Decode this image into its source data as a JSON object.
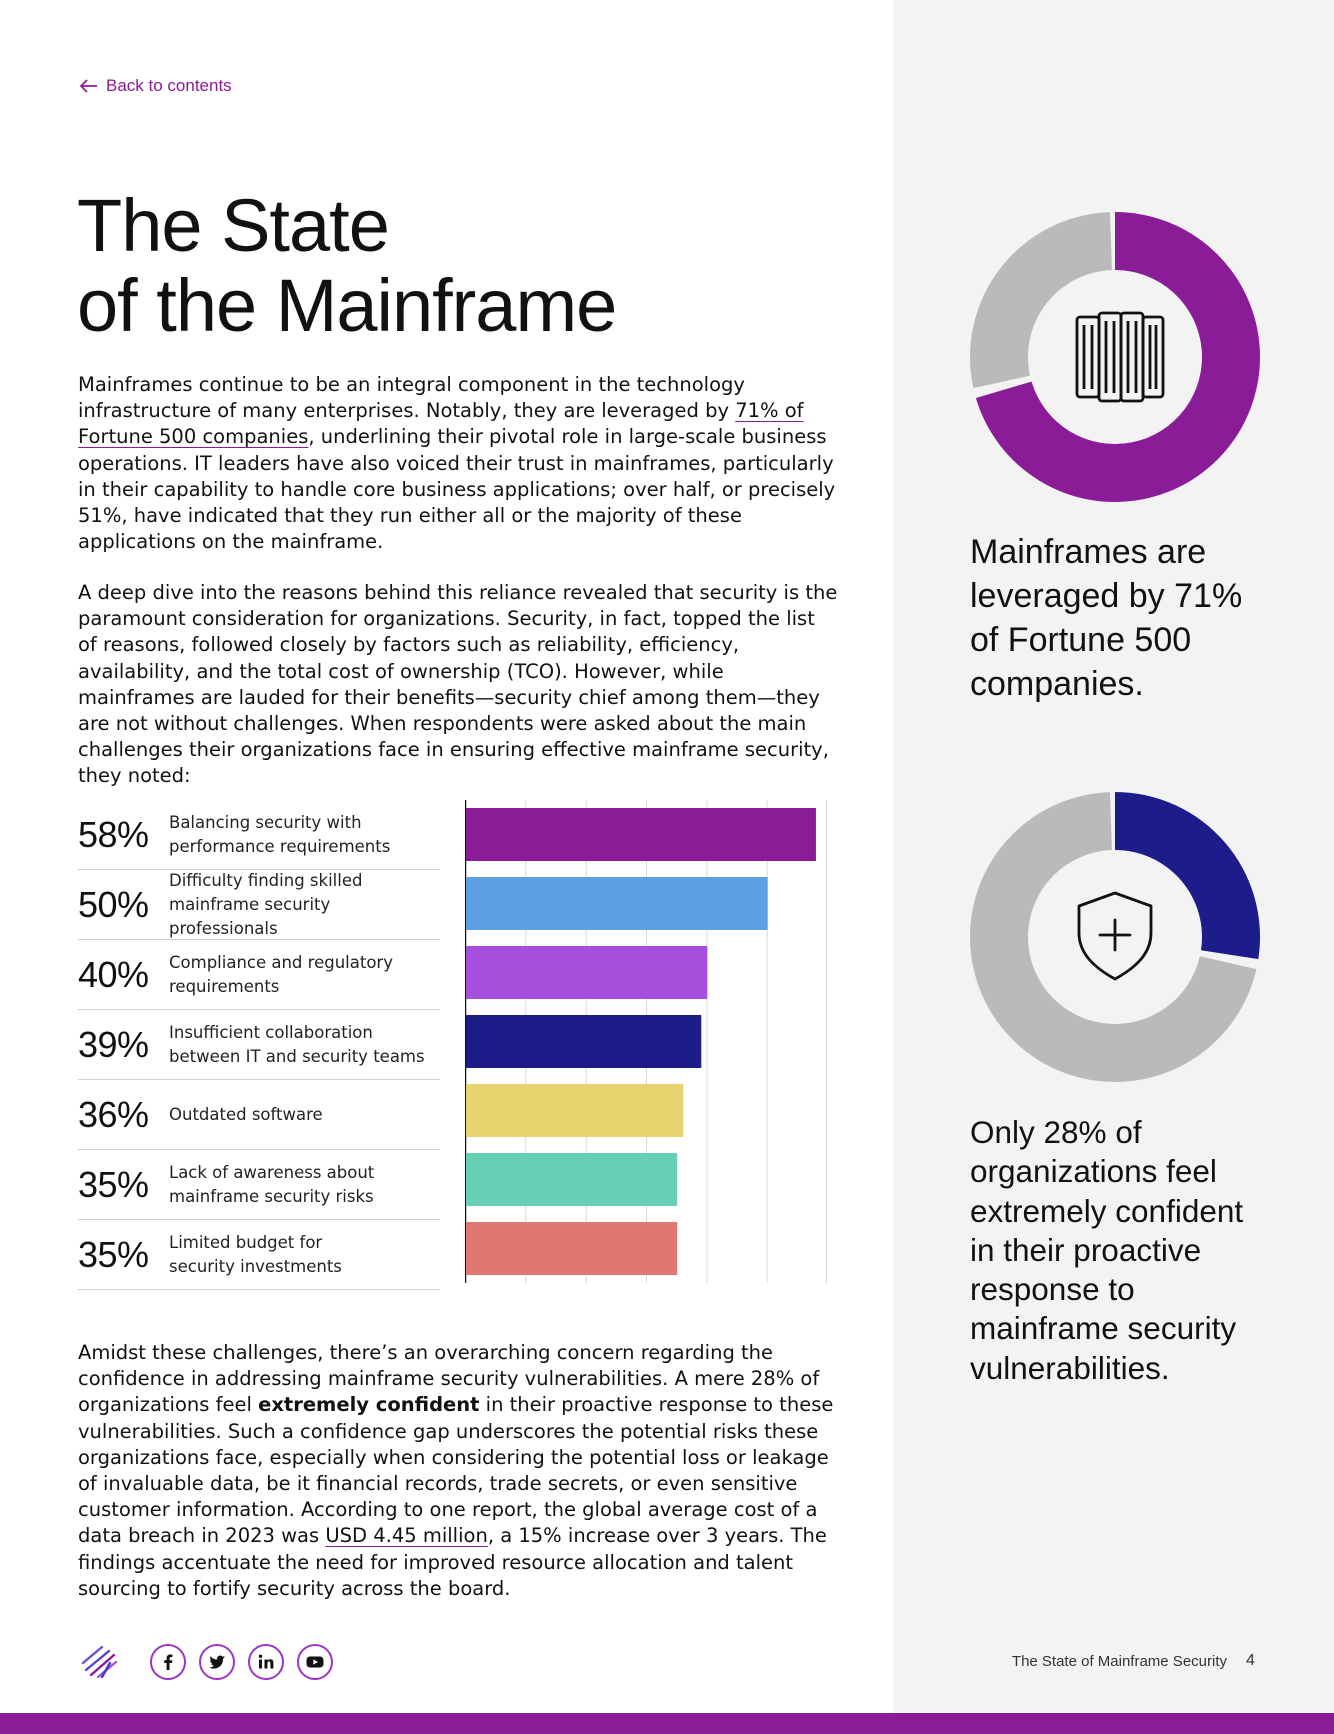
{
  "nav": {
    "back_label": "Back to contents"
  },
  "title": {
    "line1": "The State",
    "line2": "of the Mainframe"
  },
  "intro": {
    "before_link": "Mainframes continue to be an integral component in the technology infrastructure of many enterprises. Notably, they are leveraged by ",
    "link": "71% of Fortune 500 companies",
    "after_link": ", underlining their pivotal role in large-scale business operations. IT leaders have also voiced their trust in mainframes, particularly in their capability to handle core business applications; over half, or precisely 51%, have indicated that they run either all or the majority of these applications on the mainframe."
  },
  "reasons_paragraph": "A deep dive into the reasons behind this reliance revealed that security is the paramount consideration for organizations. Security, in fact, topped the list of reasons, followed closely by factors such as reliability, efficiency, availability, and the total cost of ownership (TCO). However, while mainframes are lauded for their benefits—security chief among them—they are not without challenges. When respondents were asked about the main challenges their organizations face in ensuring effective mainframe security, they noted:",
  "chart_data": {
    "type": "bar",
    "orientation": "horizontal",
    "categories": [
      [
        "Balancing security with",
        "performance requirements"
      ],
      [
        "Difficulty finding skilled",
        "mainframe security professionals"
      ],
      [
        "Compliance and regulatory",
        "requirements"
      ],
      [
        "Insufficient collaboration",
        "between IT and security teams"
      ],
      [
        "Outdated software"
      ],
      [
        "Lack of awareness about",
        "mainframe security risks"
      ],
      [
        "Limited budget for",
        "security investments"
      ]
    ],
    "labels": [
      "58%",
      "50%",
      "40%",
      "39%",
      "36%",
      "35%",
      "35%"
    ],
    "values": [
      58,
      50,
      40,
      39,
      36,
      35,
      35
    ],
    "colors": [
      "#8b1c97",
      "#5ca0e3",
      "#a64fdc",
      "#1c1c8a",
      "#e9d36e",
      "#66cfb6",
      "#e07770"
    ],
    "xlim": [
      0,
      60
    ],
    "grid": true,
    "title": "",
    "xlabel": "",
    "ylabel": ""
  },
  "conclusion": {
    "before_bold": "Amidst these challenges, there’s an overarching concern regarding the confidence in addressing mainframe security vulnerabilities. A mere 28% of organizations feel ",
    "bold": "extremely confident",
    "middle": " in their proactive response to these vulnerabilities. Such a confidence gap underscores the potential risks these organizations face, especially when considering the potential loss or leakage of invaluable data, be it financial records, trade secrets, or even sensitive customer information. According to one report, the global average cost of a data breach in 2023 was ",
    "link": "USD 4.45 million",
    "after_link": ", a 15% increase over 3 years. The findings accentuate the need for improved resource allocation and talent sourcing to fortify security across the board."
  },
  "stats": [
    {
      "percent": 71,
      "color": "#8b1c97",
      "rest_color": "#bababa",
      "icon": "mainframe-server-icon",
      "lines": [
        "Mainframes are",
        "leveraged by 71%",
        "of Fortune 500",
        "companies."
      ]
    },
    {
      "percent": 28,
      "color": "#1c1c8a",
      "rest_color": "#bababa",
      "icon": "shield-plus-icon",
      "lines": [
        "Only 28% of",
        "organizations feel",
        "extremely confident",
        "in their proactive",
        "response to",
        "mainframe security",
        "vulnerabilities."
      ]
    }
  ],
  "footer": {
    "social": [
      "facebook-icon",
      "twitter-icon",
      "linkedin-icon",
      "youtube-icon"
    ],
    "doc_title": "The State of Mainframe Security",
    "page_number": "4"
  }
}
